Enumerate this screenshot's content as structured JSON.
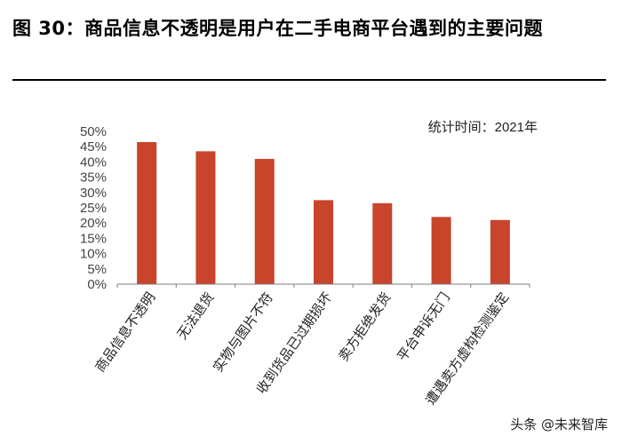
{
  "figure": {
    "title": "图 30：商品信息不透明是用户在二手电商平台遇到的主要问题",
    "note": "统计时间：2021年"
  },
  "chart_data": {
    "type": "bar",
    "categories": [
      "商品信息不透明",
      "无法退货",
      "实物与图片不符",
      "收到货品已过期损坏",
      "卖方拒绝发货",
      "平台申诉无门",
      "遭遇卖方虚构检测鉴定"
    ],
    "values": [
      46.5,
      43.5,
      41.0,
      27.5,
      26.5,
      22.0,
      21.0
    ],
    "ylim": [
      0,
      50
    ],
    "yticks": [
      "0%",
      "5%",
      "10%",
      "15%",
      "20%",
      "25%",
      "30%",
      "35%",
      "40%",
      "45%",
      "50%"
    ],
    "grid": false,
    "bar_color": "#C8442A"
  },
  "watermark": {
    "text": "头条 @未来智库"
  }
}
